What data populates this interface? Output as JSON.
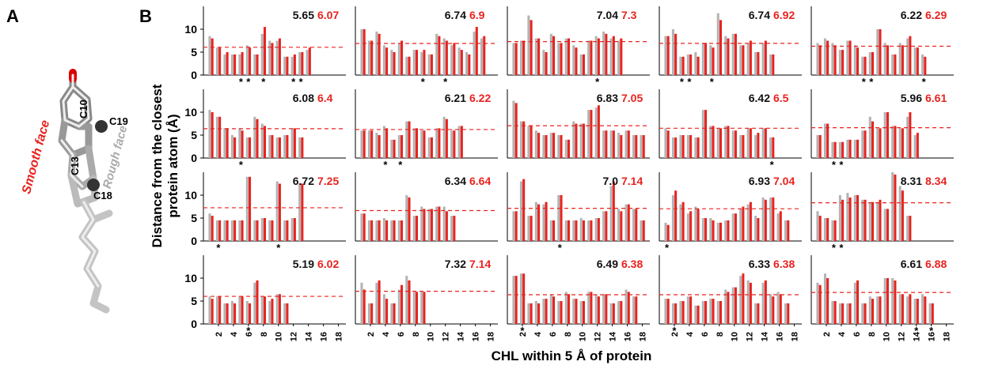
{
  "figure": {
    "panel_a_label": "A",
    "panel_b_label": "B",
    "smooth_face": "Smooth face",
    "rough_face": "Rough face",
    "atoms": [
      "C10",
      "C19",
      "C13",
      "C18"
    ],
    "y_axis_label": [
      "Distance from the closest",
      "protein atom (Å)"
    ],
    "x_axis_label": "CHL within 5 Å of protein",
    "asterisk": "*"
  },
  "chart_data": [
    {
      "type": "bar",
      "ylim": [
        0,
        15
      ],
      "xlim": [
        0,
        19
      ],
      "yticks": [
        0,
        5,
        10
      ],
      "starred": [
        5,
        6,
        8,
        12,
        13
      ],
      "series": [
        {
          "color": "#b3b3b3",
          "mean": 5.65,
          "values": [
            8.5,
            6,
            4.5,
            4.5,
            4.5,
            6.5,
            4.5,
            9,
            7.5,
            7.5,
            4,
            4,
            5,
            5.5
          ]
        },
        {
          "color": "#e8231f",
          "mean": 6.07,
          "values": [
            8,
            6,
            5,
            4.5,
            5,
            6,
            4.5,
            10.5,
            7,
            8,
            4,
            4.5,
            5,
            6
          ]
        }
      ]
    },
    {
      "type": "bar",
      "ylim": [
        0,
        15
      ],
      "xlim": [
        0,
        19
      ],
      "starred": [
        9,
        12
      ],
      "series": [
        {
          "color": "#b3b3b3",
          "mean": 6.74,
          "values": [
            10,
            7.5,
            9.5,
            6.5,
            5.5,
            7,
            4,
            5.5,
            5,
            4.5,
            9,
            8,
            6.5,
            6,
            5,
            9.5,
            8
          ]
        },
        {
          "color": "#e8231f",
          "mean": 6.9,
          "values": [
            10,
            7.5,
            9,
            6,
            5,
            7.5,
            4,
            5.5,
            5.5,
            4.5,
            8.5,
            7.5,
            7,
            5.5,
            4.5,
            10.5,
            8.5
          ]
        }
      ]
    },
    {
      "type": "bar",
      "ylim": [
        0,
        15
      ],
      "xlim": [
        0,
        19
      ],
      "starred": [
        12
      ],
      "series": [
        {
          "color": "#b3b3b3",
          "mean": 7.04,
          "values": [
            7,
            7.5,
            13,
            8,
            5.5,
            9,
            7,
            8,
            6.5,
            4.5,
            7.5,
            8.5,
            9.5,
            8,
            7.5
          ]
        },
        {
          "color": "#e8231f",
          "mean": 7.3,
          "values": [
            7,
            7.5,
            12,
            8,
            5,
            8.5,
            7,
            8,
            6,
            4.5,
            7.5,
            8,
            9,
            8.5,
            8
          ]
        }
      ]
    },
    {
      "type": "bar",
      "ylim": [
        0,
        15
      ],
      "xlim": [
        0,
        19
      ],
      "starred": [
        3,
        4,
        7
      ],
      "series": [
        {
          "color": "#b3b3b3",
          "mean": 6.74,
          "values": [
            8.5,
            10,
            4,
            4.5,
            5,
            7,
            6.5,
            13.5,
            8.5,
            9,
            6.5,
            7,
            5,
            7,
            4.5
          ]
        },
        {
          "color": "#e8231f",
          "mean": 6.92,
          "values": [
            8.5,
            9,
            4,
            4.5,
            4,
            7,
            6,
            12,
            8,
            9,
            6.5,
            7.5,
            5,
            7.5,
            4.5
          ]
        }
      ]
    },
    {
      "type": "bar",
      "ylim": [
        0,
        15
      ],
      "xlim": [
        0,
        19
      ],
      "starred": [
        7,
        8,
        15
      ],
      "series": [
        {
          "color": "#b3b3b3",
          "mean": 6.22,
          "values": [
            7,
            8,
            7,
            5.5,
            7.5,
            6.5,
            4,
            5,
            10,
            7,
            4.5,
            7,
            8,
            6,
            4.5
          ]
        },
        {
          "color": "#e8231f",
          "mean": 6.29,
          "values": [
            6.5,
            7.5,
            6.5,
            5.5,
            7.5,
            6,
            4,
            5,
            10,
            6.5,
            4.5,
            6.5,
            8.5,
            6,
            4
          ]
        }
      ]
    },
    {
      "type": "bar",
      "ylim": [
        0,
        15
      ],
      "xlim": [
        0,
        19
      ],
      "yticks": [
        0,
        5,
        10
      ],
      "starred": [
        5
      ],
      "series": [
        {
          "color": "#b3b3b3",
          "mean": 6.08,
          "values": [
            10.5,
            9,
            6.5,
            5,
            6.5,
            4.5,
            9,
            7.5,
            5,
            4.5,
            5,
            6.5,
            4.5
          ]
        },
        {
          "color": "#e8231f",
          "mean": 6.4,
          "values": [
            10,
            9,
            6.5,
            4.5,
            6,
            4.5,
            8.5,
            7,
            5,
            4.5,
            5,
            6.5,
            4.5
          ]
        }
      ]
    },
    {
      "type": "bar",
      "ylim": [
        0,
        15
      ],
      "xlim": [
        0,
        19
      ],
      "starred": [
        4,
        6
      ],
      "series": [
        {
          "color": "#b3b3b3",
          "mean": 6.21,
          "values": [
            6,
            6,
            5.5,
            7,
            4,
            5,
            8,
            6.5,
            6,
            4.5,
            6.5,
            9,
            6,
            7
          ]
        },
        {
          "color": "#e8231f",
          "mean": 6.22,
          "values": [
            6,
            6,
            5,
            6.5,
            4,
            5,
            8,
            6.5,
            6,
            4.5,
            6.5,
            8.5,
            6,
            7
          ]
        }
      ]
    },
    {
      "type": "bar",
      "ylim": [
        0,
        15
      ],
      "xlim": [
        0,
        19
      ],
      "starred": [],
      "series": [
        {
          "color": "#b3b3b3",
          "mean": 6.83,
          "values": [
            12.5,
            8,
            7,
            6,
            5,
            5.5,
            5,
            4,
            8,
            7.5,
            10.5,
            11,
            6,
            6,
            5.5,
            6,
            5,
            5
          ]
        },
        {
          "color": "#e8231f",
          "mean": 7.05,
          "values": [
            12,
            8,
            7,
            5.5,
            5,
            5.5,
            5,
            4,
            7.5,
            7.5,
            10.5,
            11.5,
            6,
            6,
            5,
            6,
            5,
            5
          ]
        }
      ]
    },
    {
      "type": "bar",
      "ylim": [
        0,
        15
      ],
      "xlim": [
        0,
        19
      ],
      "starred": [
        15
      ],
      "series": [
        {
          "color": "#b3b3b3",
          "mean": 6.42,
          "values": [
            6.5,
            4.5,
            5,
            5,
            4.5,
            10.5,
            7,
            6.5,
            7,
            6,
            5,
            6.5,
            5,
            6.5,
            4.5
          ]
        },
        {
          "color": "#e8231f",
          "mean": 6.5,
          "values": [
            6,
            4.5,
            5,
            5,
            4.5,
            10.5,
            7,
            6.5,
            7,
            6,
            5,
            6.5,
            5.5,
            6.5,
            4.5
          ]
        }
      ]
    },
    {
      "type": "bar",
      "ylim": [
        0,
        15
      ],
      "xlim": [
        0,
        19
      ],
      "starred": [
        3,
        4
      ],
      "series": [
        {
          "color": "#b3b3b3",
          "mean": 5.96,
          "values": [
            5,
            7.5,
            3.5,
            3.5,
            4,
            4,
            6,
            9,
            6.5,
            10,
            7,
            6.5,
            9,
            5
          ]
        },
        {
          "color": "#e8231f",
          "mean": 6.61,
          "values": [
            5,
            7.5,
            3.5,
            3.5,
            4,
            4,
            6,
            8,
            6.5,
            10,
            7,
            6.5,
            10,
            5.5
          ]
        }
      ]
    },
    {
      "type": "bar",
      "ylim": [
        0,
        15
      ],
      "xlim": [
        0,
        19
      ],
      "yticks": [
        0,
        5,
        10
      ],
      "starred": [
        2,
        10
      ],
      "series": [
        {
          "color": "#b3b3b3",
          "mean": 6.72,
          "values": [
            6,
            4.5,
            4.5,
            4.5,
            4.5,
            14,
            4.5,
            5,
            4.5,
            13,
            4.5,
            5,
            12.5
          ]
        },
        {
          "color": "#e8231f",
          "mean": 7.25,
          "values": [
            5.5,
            4.5,
            4.5,
            4.5,
            4.5,
            14,
            4.5,
            5,
            4.5,
            12.5,
            4.5,
            5,
            12.5
          ]
        }
      ]
    },
    {
      "type": "bar",
      "ylim": [
        0,
        15
      ],
      "xlim": [
        0,
        19
      ],
      "starred": [],
      "series": [
        {
          "color": "#b3b3b3",
          "mean": 6.34,
          "values": [
            6,
            4.5,
            4.5,
            5,
            4.5,
            4.5,
            10,
            5.5,
            7.5,
            7,
            7.5,
            7.5,
            5.5
          ]
        },
        {
          "color": "#e8231f",
          "mean": 6.64,
          "values": [
            6,
            4.5,
            4.5,
            4.5,
            4.5,
            4.5,
            9.5,
            5.5,
            7,
            7,
            7.5,
            6.5,
            5.5
          ]
        }
      ]
    },
    {
      "type": "bar",
      "ylim": [
        0,
        15
      ],
      "xlim": [
        0,
        19
      ],
      "starred": [
        7
      ],
      "series": [
        {
          "color": "#b3b3b3",
          "mean": 7.0,
          "mean_label": "7.0",
          "values": [
            6.5,
            13,
            5.5,
            8.5,
            8,
            4.5,
            10,
            4.5,
            4.5,
            5,
            4.5,
            5,
            6.5,
            12,
            7,
            8,
            7,
            4.5
          ]
        },
        {
          "color": "#e8231f",
          "mean": 7.14,
          "values": [
            6.5,
            13.5,
            5.5,
            8,
            8.5,
            4.5,
            10,
            4.5,
            4.5,
            4.5,
            4.5,
            5,
            6.5,
            13,
            6.5,
            8,
            7,
            4.5
          ]
        }
      ]
    },
    {
      "type": "bar",
      "ylim": [
        0,
        15
      ],
      "xlim": [
        0,
        19
      ],
      "starred": [
        1
      ],
      "series": [
        {
          "color": "#b3b3b3",
          "mean": 6.93,
          "values": [
            4,
            10,
            8,
            6,
            7.5,
            5,
            5,
            4,
            4.5,
            6,
            7,
            8,
            5.5,
            9.5,
            9.5,
            6,
            4.5
          ]
        },
        {
          "color": "#e8231f",
          "mean": 7.04,
          "values": [
            3.5,
            11,
            8.5,
            6.5,
            7,
            5,
            4.5,
            4,
            4.5,
            6,
            7.5,
            8.5,
            5,
            9,
            9.5,
            6.5,
            4.5
          ]
        }
      ]
    },
    {
      "type": "bar",
      "ylim": [
        0,
        15
      ],
      "xlim": [
        0,
        19
      ],
      "starred": [
        3,
        4
      ],
      "series": [
        {
          "color": "#b3b3b3",
          "mean": 8.31,
          "values": [
            6.5,
            5,
            4.5,
            10,
            10.5,
            10,
            9,
            8.5,
            8.5,
            7,
            15,
            12,
            5.5
          ]
        },
        {
          "color": "#e8231f",
          "mean": 8.34,
          "values": [
            5.5,
            5,
            4.5,
            9,
            9.5,
            10,
            9,
            8.5,
            9,
            7,
            14.5,
            11,
            5.5
          ]
        }
      ]
    },
    {
      "type": "bar",
      "ylim": [
        0,
        15
      ],
      "xlim": [
        0,
        19
      ],
      "yticks": [
        0,
        5,
        10
      ],
      "xticks": [
        2,
        4,
        6,
        8,
        10,
        12,
        14,
        16,
        18
      ],
      "starred": [
        6
      ],
      "series": [
        {
          "color": "#b3b3b3",
          "mean": 5.19,
          "values": [
            6,
            6,
            4.5,
            5,
            6,
            5,
            9,
            6,
            5,
            6.5,
            4.5
          ]
        },
        {
          "color": "#e8231f",
          "mean": 6.02,
          "values": [
            5.5,
            6,
            4.5,
            4.5,
            6,
            4.5,
            9.5,
            6,
            5.5,
            6.5,
            4.5
          ]
        }
      ]
    },
    {
      "type": "bar",
      "ylim": [
        0,
        15
      ],
      "xlim": [
        0,
        19
      ],
      "xticks": [
        2,
        4,
        6,
        8,
        10,
        12,
        14,
        16,
        18
      ],
      "starred": [],
      "series": [
        {
          "color": "#b3b3b3",
          "mean": 7.32,
          "values": [
            9,
            4.5,
            9,
            6.5,
            4.5,
            7.5,
            10.5,
            7,
            7
          ]
        },
        {
          "color": "#e8231f",
          "mean": 7.14,
          "values": [
            7.5,
            4.5,
            9.5,
            5.5,
            4.5,
            8.5,
            9.5,
            7,
            7
          ]
        }
      ]
    },
    {
      "type": "bar",
      "ylim": [
        0,
        15
      ],
      "xlim": [
        0,
        19
      ],
      "xticks": [
        2,
        4,
        6,
        8,
        10,
        12,
        14,
        16,
        18
      ],
      "starred": [
        2
      ],
      "series": [
        {
          "color": "#b3b3b3",
          "mean": 6.49,
          "values": [
            10.5,
            11,
            4.5,
            5,
            5.5,
            6.5,
            5,
            7,
            5.5,
            5,
            7,
            6.5,
            6.5,
            4.5,
            5,
            7.5,
            6
          ]
        },
        {
          "color": "#e8231f",
          "mean": 6.38,
          "values": [
            10.5,
            11,
            4.5,
            4.5,
            5.5,
            6,
            5,
            6.5,
            5.5,
            5,
            7,
            6,
            6.5,
            4.5,
            5,
            7,
            6
          ]
        }
      ]
    },
    {
      "type": "bar",
      "ylim": [
        0,
        15
      ],
      "xlim": [
        0,
        19
      ],
      "xticks": [
        2,
        4,
        6,
        8,
        10,
        12,
        14,
        16,
        18
      ],
      "starred": [
        2
      ],
      "series": [
        {
          "color": "#b3b3b3",
          "mean": 6.33,
          "values": [
            5.5,
            4.5,
            5,
            6,
            4,
            5,
            5.5,
            5,
            7.5,
            8,
            10.5,
            9.5,
            4.5,
            9,
            6.5,
            7,
            4.5
          ]
        },
        {
          "color": "#e8231f",
          "mean": 6.38,
          "values": [
            5.5,
            4.5,
            5,
            6,
            4,
            5,
            5.5,
            5,
            7,
            8,
            11,
            9,
            4.5,
            9.5,
            6,
            6.5,
            4.5
          ]
        }
      ]
    },
    {
      "type": "bar",
      "ylim": [
        0,
        15
      ],
      "xlim": [
        0,
        19
      ],
      "xticks": [
        2,
        4,
        6,
        8,
        10,
        12,
        14,
        16,
        18
      ],
      "starred": [
        14,
        16
      ],
      "series": [
        {
          "color": "#b3b3b3",
          "mean": 6.61,
          "values": [
            9,
            11,
            5,
            4.5,
            4.5,
            9,
            4.5,
            6,
            6,
            10,
            10,
            6.5,
            6,
            5.5,
            6.5,
            4.5
          ]
        },
        {
          "color": "#e8231f",
          "mean": 6.88,
          "values": [
            8.5,
            10,
            5,
            4.5,
            4.5,
            9.5,
            4.5,
            5.5,
            6,
            10,
            9.5,
            6.5,
            6.5,
            5.5,
            6,
            4.5
          ]
        }
      ]
    }
  ]
}
